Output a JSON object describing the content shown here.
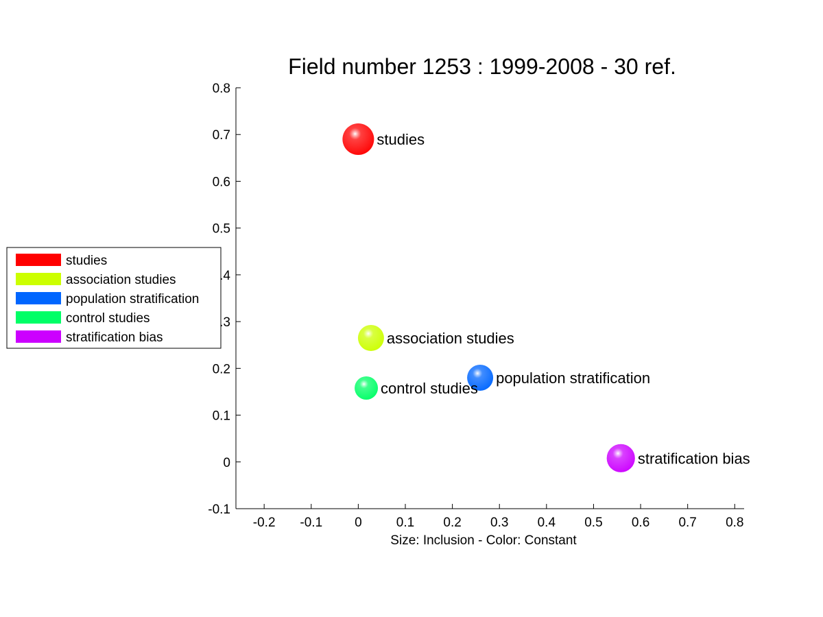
{
  "chart_data": {
    "type": "scatter",
    "title": "Field number 1253 : 1999-2008  - 30 ref.",
    "xlabel": "Size: Inclusion - Color: Constant",
    "ylabel": "",
    "xlim": [
      -0.26,
      0.82
    ],
    "ylim": [
      -0.1,
      0.8
    ],
    "xticks": [
      -0.2,
      -0.1,
      0,
      0.1,
      0.2,
      0.3,
      0.4,
      0.5,
      0.6,
      0.7,
      0.8
    ],
    "yticks": [
      -0.1,
      0,
      0.1,
      0.2,
      0.3,
      0.4,
      0.5,
      0.6,
      0.7,
      0.8
    ],
    "xtick_labels": [
      "-0.2",
      "-0.1",
      "0",
      "0.1",
      "0.2",
      "0.3",
      "0.4",
      "0.5",
      "0.6",
      "0.7",
      "0.8"
    ],
    "ytick_labels": [
      "-0.1",
      "0",
      "0.1",
      "0.2",
      "0.3",
      "0.4",
      "0.5",
      "0.6",
      "0.7",
      "0.8"
    ],
    "grid": false,
    "legend_position": "left",
    "series": [
      {
        "name": "studies",
        "x": 0.0,
        "y": 0.69,
        "size": 3,
        "color": "#ff0000",
        "label": "studies"
      },
      {
        "name": "association studies",
        "x": 0.027,
        "y": 0.265,
        "size": 2,
        "color": "#ccff00",
        "label": "association studies"
      },
      {
        "name": "population stratification",
        "x": 0.259,
        "y": 0.18,
        "size": 2,
        "color": "#0066ff",
        "label": "population stratification"
      },
      {
        "name": "control studies",
        "x": 0.017,
        "y": 0.158,
        "size": 1.5,
        "color": "#00ff66",
        "label": "control studies"
      },
      {
        "name": "stratification bias",
        "x": 0.558,
        "y": 0.008,
        "size": 2.4,
        "color": "#cc00ff",
        "label": "stratification bias"
      }
    ]
  }
}
